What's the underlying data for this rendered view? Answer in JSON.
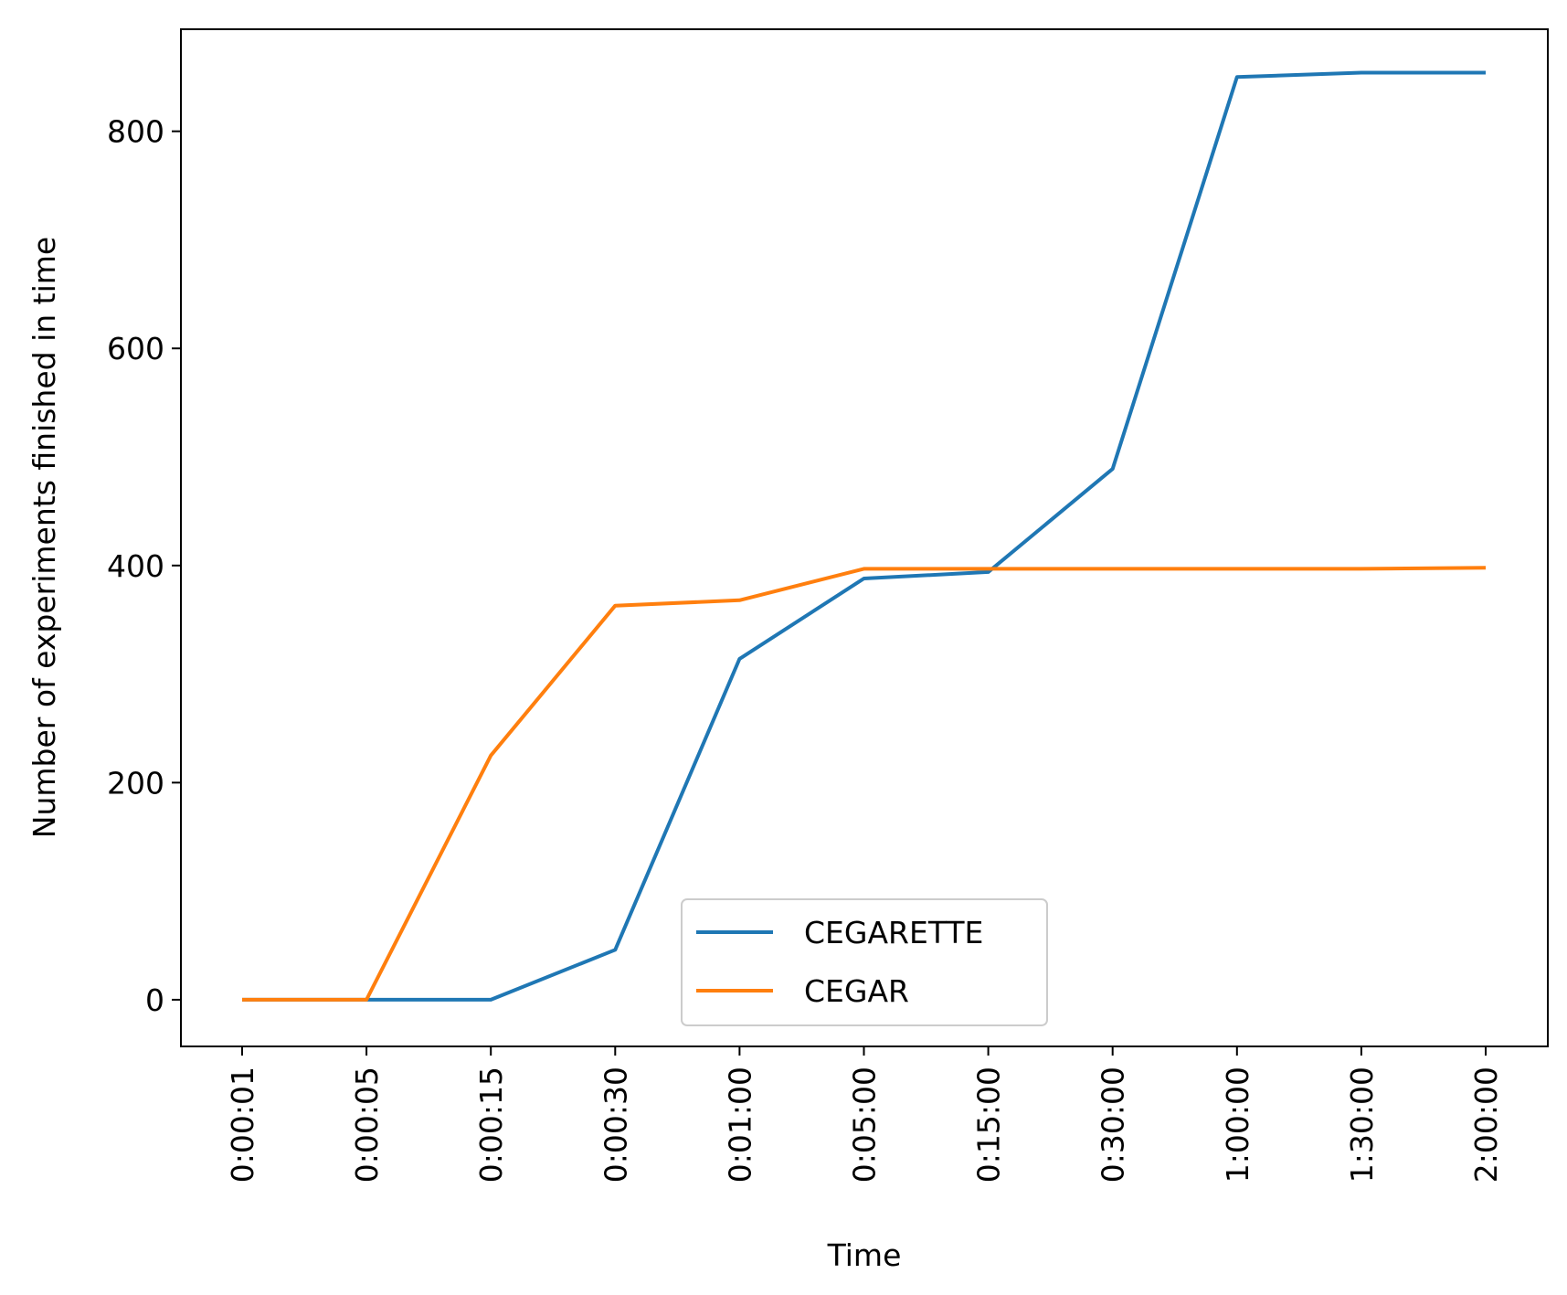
{
  "chart_data": {
    "type": "line",
    "title": "",
    "xlabel": "Time",
    "ylabel": "Number of experiments finished in time",
    "categories": [
      "0:00:01",
      "0:00:05",
      "0:00:15",
      "0:00:30",
      "0:01:00",
      "0:05:00",
      "0:15:00",
      "0:30:00",
      "1:00:00",
      "1:30:00",
      "2:00:00"
    ],
    "series": [
      {
        "name": "CEGARETTE",
        "color": "#1f77b4",
        "values": [
          0,
          0,
          0,
          46,
          314,
          388,
          394,
          489,
          850,
          854,
          854
        ]
      },
      {
        "name": "CEGAR",
        "color": "#ff7f0e",
        "values": [
          0,
          0,
          225,
          363,
          368,
          397,
          397,
          397,
          397,
          397,
          398
        ]
      }
    ],
    "ylim": [
      -43,
      894
    ],
    "yticks": [
      0,
      200,
      400,
      600,
      800
    ],
    "grid": false,
    "legend_position": "lower-center"
  }
}
